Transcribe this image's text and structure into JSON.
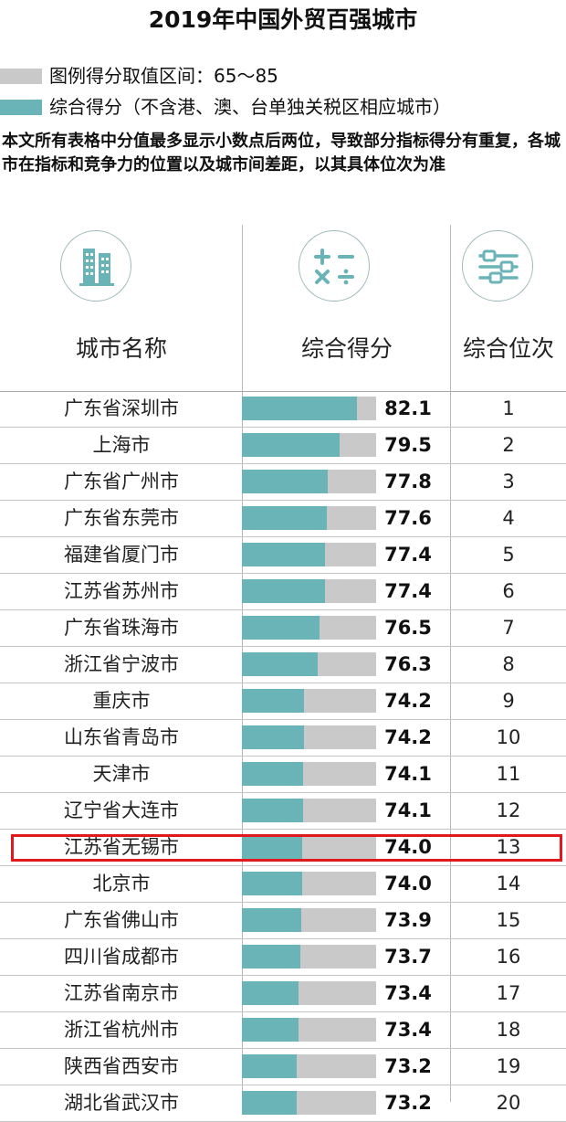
{
  "title": "2019年中国外贸百强城市",
  "legend": {
    "range_label": "图例得分取值区间：65～85",
    "score_label": "综合得分（不含港、澳、台单独关税区相应城市）",
    "range_color": "#c9c9c9",
    "score_color": "#6ab3b7"
  },
  "note": "本文所有表格中分值最多显示小数点后两位，导致部分指标得分有重复，各城市在指标和竞争力的位置以及城市间差距，以其具体位次为准",
  "headers": {
    "city": "城市名称",
    "score": "综合得分",
    "rank": "综合位次",
    "city_icon": "building-icon",
    "score_icon": "calculator-icon",
    "rank_icon": "sliders-icon"
  },
  "highlight_rank": 13,
  "highlight_color": "#e0191f",
  "chart_data": {
    "type": "bar",
    "title": "2019年中国外贸百强城市",
    "orientation": "horizontal",
    "xlim": [
      65,
      85
    ],
    "categories": [
      "广东省深圳市",
      "上海市",
      "广东省广州市",
      "广东省东莞市",
      "福建省厦门市",
      "江苏省苏州市",
      "广东省珠海市",
      "浙江省宁波市",
      "重庆市",
      "山东省青岛市",
      "天津市",
      "辽宁省大连市",
      "江苏省无锡市",
      "北京市",
      "广东省佛山市",
      "四川省成都市",
      "江苏省南京市",
      "浙江省杭州市",
      "陕西省西安市",
      "湖北省武汉市"
    ],
    "values": [
      82.1,
      79.5,
      77.8,
      77.6,
      77.4,
      77.4,
      76.5,
      76.3,
      74.2,
      74.2,
      74.1,
      74.1,
      74.0,
      74.0,
      73.9,
      73.7,
      73.4,
      73.4,
      73.2,
      73.2
    ],
    "value_labels": [
      "82.1",
      "79.5",
      "77.8",
      "77.6",
      "77.4",
      "77.4",
      "76.5",
      "76.3",
      "74.2",
      "74.2",
      "74.1",
      "74.1",
      "74.0",
      "74.0",
      "73.9",
      "73.7",
      "73.4",
      "73.4",
      "73.2",
      "73.2"
    ],
    "ranks": [
      "1",
      "2",
      "3",
      "4",
      "5",
      "6",
      "7",
      "8",
      "9",
      "10",
      "11",
      "12",
      "13",
      "14",
      "15",
      "16",
      "17",
      "18",
      "19",
      "20"
    ]
  }
}
